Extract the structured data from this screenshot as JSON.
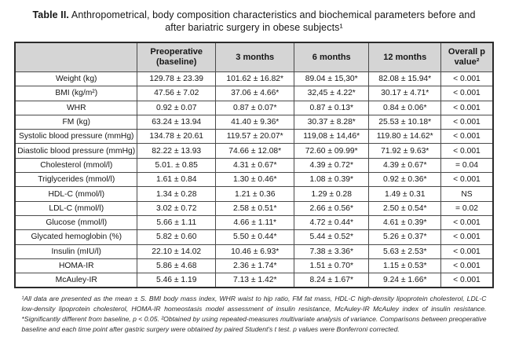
{
  "title": {
    "label": "Table II.",
    "text": "Anthropometrical, body composition characteristics and biochemical parameters before and after bariatric surgery in obese subjects¹"
  },
  "table": {
    "header_bg": "#d5d5d5",
    "border_color": "#2b2b2b",
    "columns": [
      "",
      "Preoperative (baseline)",
      "3 months",
      "6 months",
      "12 months",
      "Overall p value²"
    ],
    "rows": [
      {
        "label": "Weight (kg)",
        "values": [
          "129.78 ± 23.39",
          "101.62 ± 16.82*",
          "89.04 ± 15,30*",
          "82.08 ± 15.94*",
          "< 0.001"
        ]
      },
      {
        "label": "BMI (kg/m²)",
        "values": [
          "47.56 ± 7.02",
          "37.06 ± 4.66*",
          "32,45 ± 4.22*",
          "30.17 ± 4.71*",
          "< 0.001"
        ]
      },
      {
        "label": "WHR",
        "values": [
          "0.92 ± 0.07",
          "0.87 ± 0.07*",
          "0.87 ± 0.13*",
          "0.84 ± 0.06*",
          "< 0.001"
        ]
      },
      {
        "label": "FM (kg)",
        "values": [
          "63.24 ± 13.94",
          "41.40 ± 9.36*",
          "30.37 ± 8.28*",
          "25.53 ± 10.18*",
          "< 0.001"
        ]
      },
      {
        "label": "Systolic blood pressure (mmHg)",
        "values": [
          "134.78 ± 20.61",
          "119.57 ± 20.07*",
          "119,08 ± 14,46*",
          "119.80 ± 14.62*",
          "< 0.001"
        ]
      },
      {
        "label": "Diastolic blood pressure (mmHg)",
        "values": [
          "82.22 ± 13.93",
          "74.66 ± 12.08*",
          "72.60 ± 09.99*",
          "71.92 ± 9.63*",
          "< 0.001"
        ]
      },
      {
        "label": "Cholesterol (mmol/l)",
        "values": [
          "5.01. ± 0.85",
          "4.31 ± 0.67*",
          "4.39 ± 0.72*",
          "4.39 ± 0.67*",
          "= 0.04"
        ]
      },
      {
        "label": "Triglycerides (mmol/l)",
        "values": [
          "1.61 ± 0.84",
          "1.30 ± 0.46*",
          "1.08 ± 0.39*",
          "0.92 ± 0.36*",
          "< 0.001"
        ]
      },
      {
        "label": "HDL-C (mmol/l)",
        "values": [
          "1.34 ± 0.28",
          "1.21 ± 0.36",
          "1.29 ± 0.28",
          "1.49 ± 0.31",
          "NS"
        ]
      },
      {
        "label": "LDL-C (mmol/l)",
        "values": [
          "3.02 ± 0.72",
          "2.58 ± 0.51*",
          "2.66 ± 0.56*",
          "2.50 ± 0.54*",
          "= 0.02"
        ]
      },
      {
        "label": "Glucose (mmol/l)",
        "values": [
          "5.66 ± 1.11",
          "4.66 ± 1.11*",
          "4.72 ± 0.44*",
          "4.61 ± 0.39*",
          "< 0.001"
        ]
      },
      {
        "label": "Glycated hemoglobin (%)",
        "values": [
          "5.82 ± 0.60",
          "5.50 ± 0.44*",
          "5.44 ± 0.52*",
          "5.26 ± 0.37*",
          "< 0.001"
        ]
      },
      {
        "label": "Insulin (mIU/l)",
        "values": [
          "22.10 ± 14.02",
          "10.46 ± 6.93*",
          "7.38 ± 3.36*",
          "5.63 ± 2.53*",
          "< 0.001"
        ]
      },
      {
        "label": "HOMA-IR",
        "values": [
          "5.86 ± 4.68",
          "2.36 ± 1.74*",
          "1.51 ± 0.70*",
          "1.15 ± 0.53*",
          "< 0.001"
        ]
      },
      {
        "label": "McAuley-IR",
        "values": [
          "5.46 ± 1.19",
          "7.13 ± 1.42*",
          "8.24 ± 1.67*",
          "9.24 ± 1.66*",
          "< 0.001"
        ]
      }
    ]
  },
  "footnote": {
    "text": "¹All data are presented as the mean ± S. BMI body mass index, WHR waist to hip ratio, FM fat mass, HDL-C high-density lipoprotein cholesterol, LDL-C low-density lipoprotein cholesterol, HOMA-IR homeostasis model assessment of insulin resistance, McAuley-IR McAuley index of insulin resistance. *Significantly different from baseline, p < 0.05. ²Obtained by using repeated-measures multivariate analysis of variance. Comparisons between preoperative baseline and each time point after gastric surgery were obtained by paired Student's t test. p values were Bonferroni corrected."
  }
}
